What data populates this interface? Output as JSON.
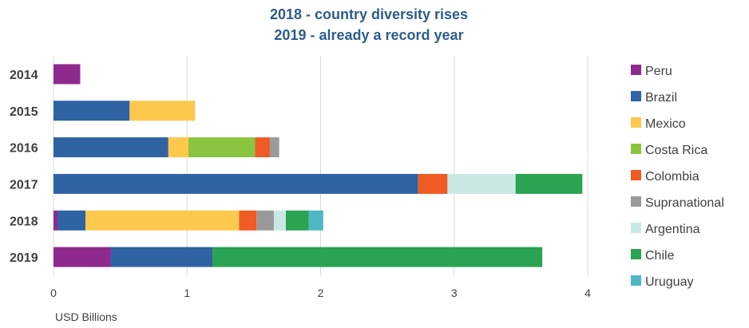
{
  "chart_data": {
    "type": "bar",
    "orientation": "horizontal",
    "stacked": true,
    "title": [
      "2018 - country diversity rises",
      "2019 - already a record year"
    ],
    "xlabel": "USD Billions",
    "ylabel": "",
    "xlim": [
      0,
      4
    ],
    "x_ticks": [
      0,
      1,
      2,
      3,
      4
    ],
    "grid": "vertical",
    "legend_position": "right",
    "categories": [
      "2014",
      "2015",
      "2016",
      "2017",
      "2018",
      "2019"
    ],
    "series": [
      {
        "name": "Peru",
        "color": "#8e2a8e",
        "values": [
          0.2,
          0,
          0,
          0,
          0.03,
          0.43
        ]
      },
      {
        "name": "Brazil",
        "color": "#2f63a3",
        "values": [
          0,
          0.57,
          0.86,
          2.73,
          0.21,
          0.76
        ]
      },
      {
        "name": "Mexico",
        "color": "#fec84d",
        "values": [
          0,
          0.49,
          0.15,
          0,
          1.15,
          0
        ]
      },
      {
        "name": "Costa Rica",
        "color": "#8bc540",
        "values": [
          0,
          0,
          0.5,
          0,
          0,
          0
        ]
      },
      {
        "name": "Colombia",
        "color": "#f05a23",
        "values": [
          0,
          0,
          0.11,
          0.22,
          0.13,
          0
        ]
      },
      {
        "name": "Supranational",
        "color": "#999999",
        "values": [
          0,
          0,
          0.07,
          0,
          0.13,
          0
        ]
      },
      {
        "name": "Argentina",
        "color": "#c9e8e4",
        "values": [
          0,
          0,
          0,
          0.51,
          0.09,
          0
        ]
      },
      {
        "name": "Chile",
        "color": "#2aa352",
        "values": [
          0,
          0,
          0,
          0.5,
          0.17,
          2.47
        ]
      },
      {
        "name": "Uruguay",
        "color": "#4db8c4",
        "values": [
          0,
          0,
          0,
          0,
          0.11,
          0
        ]
      }
    ]
  }
}
